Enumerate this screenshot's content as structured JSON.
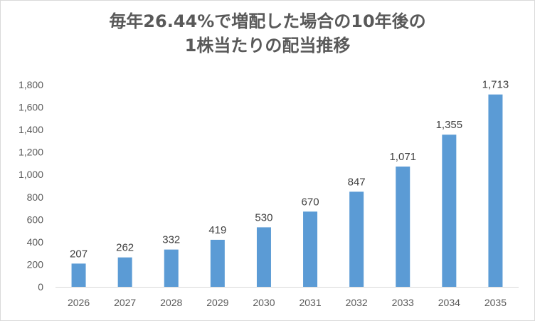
{
  "chart_data": {
    "type": "bar",
    "title_lines": [
      "毎年26.44%で増配した場合の10年後の",
      "1株当たりの配当推移"
    ],
    "categories": [
      "2026",
      "2027",
      "2028",
      "2029",
      "2030",
      "2031",
      "2032",
      "2033",
      "2034",
      "2035"
    ],
    "values": [
      207,
      262,
      332,
      419,
      530,
      670,
      847,
      1071,
      1355,
      1713
    ],
    "data_labels": [
      "207",
      "262",
      "332",
      "419",
      "530",
      "670",
      "847",
      "1,071",
      "1,355",
      "1,713"
    ],
    "yticks": [
      "0",
      "200",
      "400",
      "600",
      "800",
      "1,000",
      "1,200",
      "1,400",
      "1,600",
      "1,800"
    ],
    "ylim": [
      0,
      1800
    ],
    "y_step": 200,
    "grid": false,
    "legend": "none",
    "bar_color": "#5b9bd5",
    "axis_color": "#d9d9d9"
  }
}
